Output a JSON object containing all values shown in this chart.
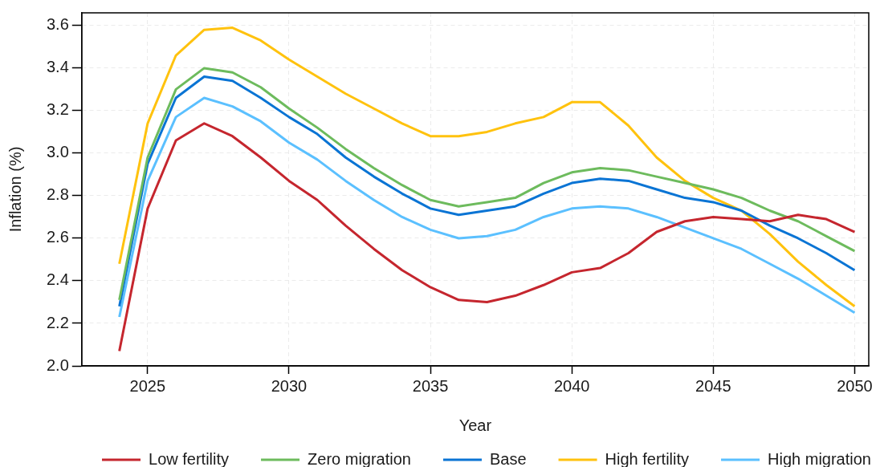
{
  "chart_data": {
    "type": "line",
    "xlabel": "Year",
    "ylabel": "Inflation (%)",
    "x": [
      2024,
      2025,
      2026,
      2027,
      2028,
      2029,
      2030,
      2031,
      2032,
      2033,
      2034,
      2035,
      2036,
      2037,
      2038,
      2039,
      2040,
      2041,
      2042,
      2043,
      2044,
      2045,
      2046,
      2047,
      2048,
      2049,
      2050
    ],
    "series": [
      {
        "name": "Low fertility",
        "color": "#c5262e",
        "values": [
          2.07,
          2.74,
          3.06,
          3.14,
          3.08,
          2.98,
          2.87,
          2.78,
          2.66,
          2.55,
          2.45,
          2.37,
          2.31,
          2.3,
          2.33,
          2.38,
          2.44,
          2.46,
          2.53,
          2.63,
          2.68,
          2.7,
          2.69,
          2.68,
          2.71,
          2.69,
          2.63
        ]
      },
      {
        "name": "Zero migration",
        "color": "#6dbb5d",
        "values": [
          2.31,
          2.98,
          3.3,
          3.4,
          3.38,
          3.31,
          3.21,
          3.12,
          3.02,
          2.93,
          2.85,
          2.78,
          2.75,
          2.77,
          2.79,
          2.86,
          2.91,
          2.93,
          2.92,
          2.89,
          2.86,
          2.83,
          2.79,
          2.73,
          2.68,
          2.61,
          2.54
        ]
      },
      {
        "name": "Base",
        "color": "#0a74d4",
        "values": [
          2.28,
          2.95,
          3.26,
          3.36,
          3.34,
          3.26,
          3.17,
          3.09,
          2.98,
          2.89,
          2.81,
          2.74,
          2.71,
          2.73,
          2.75,
          2.81,
          2.86,
          2.88,
          2.87,
          2.83,
          2.79,
          2.77,
          2.73,
          2.66,
          2.6,
          2.53,
          2.45
        ]
      },
      {
        "name": "High fertility",
        "color": "#ffc20e",
        "values": [
          2.48,
          3.14,
          3.46,
          3.58,
          3.59,
          3.53,
          3.44,
          3.36,
          3.28,
          3.21,
          3.14,
          3.08,
          3.08,
          3.1,
          3.14,
          3.17,
          3.24,
          3.24,
          3.13,
          2.98,
          2.87,
          2.79,
          2.73,
          2.62,
          2.49,
          2.38,
          2.28
        ]
      },
      {
        "name": "High migration",
        "color": "#5bc0ff",
        "values": [
          2.23,
          2.87,
          3.17,
          3.26,
          3.22,
          3.15,
          3.05,
          2.97,
          2.87,
          2.78,
          2.7,
          2.64,
          2.6,
          2.61,
          2.64,
          2.7,
          2.74,
          2.75,
          2.74,
          2.7,
          2.65,
          2.6,
          2.55,
          2.48,
          2.41,
          2.33,
          2.25
        ]
      }
    ],
    "xlim": [
      2022.67,
      2050.5
    ],
    "xticks": [
      2025,
      2030,
      2035,
      2040,
      2045,
      2050
    ],
    "ylim": [
      2.0,
      3.66
    ],
    "yticks": [
      {
        "value": 2.0,
        "label": "2.0"
      },
      2.2,
      2.4,
      2.6,
      2.8,
      {
        "value": 3.0,
        "label": "3.0"
      },
      3.2,
      3.4,
      3.6
    ],
    "grid": true,
    "legend": "bottom",
    "marker": "none",
    "line_style": "solid"
  }
}
